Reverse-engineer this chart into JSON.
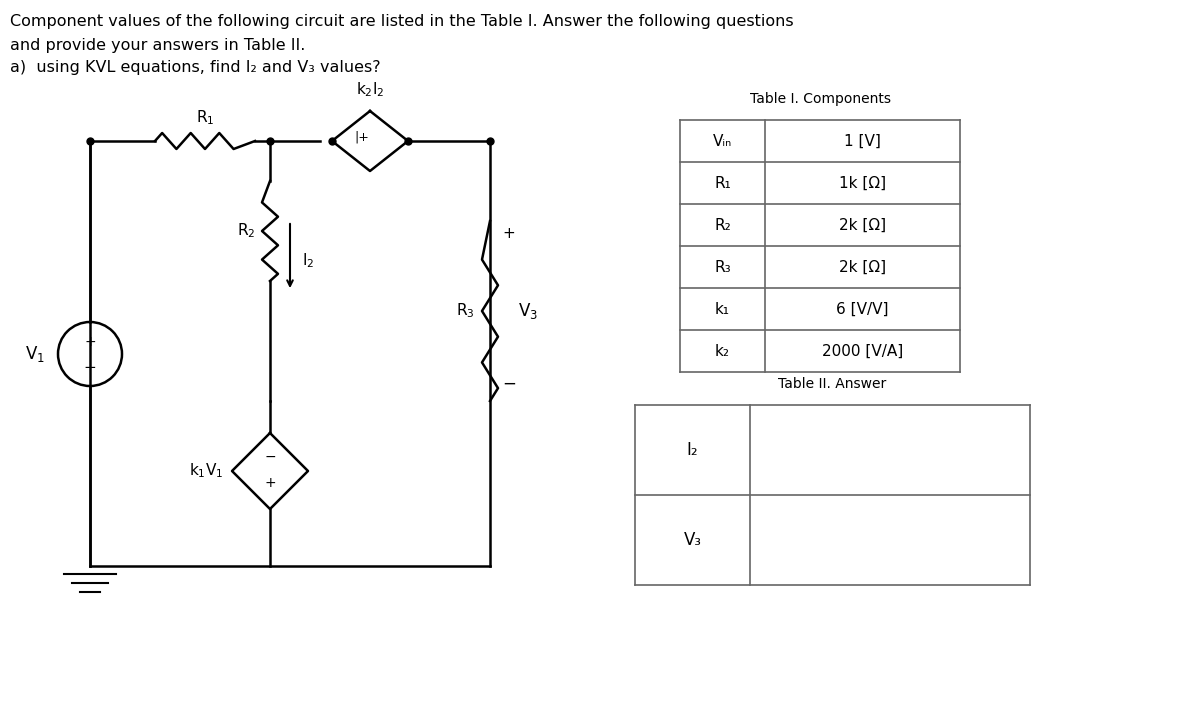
{
  "title_line1": "Component values of the following circuit are listed in the Table I. Answer the following questions",
  "title_line2": "and provide your answers in Table II.",
  "title_line3": "a)  using KVL equations, find I₂ and V₃ values?",
  "table1_title": "Table I. Components",
  "table1_rows": [
    [
      "Vᵢₙ",
      "1 [V]"
    ],
    [
      "R₁",
      "1k [Ω]"
    ],
    [
      "R₂",
      "2k [Ω]"
    ],
    [
      "R₃",
      "2k [Ω]"
    ],
    [
      "k₁",
      "6 [V/V]"
    ],
    [
      "k₂",
      "2000 [V/A]"
    ]
  ],
  "table2_title": "Table II. Answer",
  "table2_rows": [
    [
      "I₂",
      ""
    ],
    [
      "V₃",
      ""
    ]
  ],
  "bg_color": "#ffffff",
  "text_color": "#000000",
  "table_border_color": "#666666"
}
